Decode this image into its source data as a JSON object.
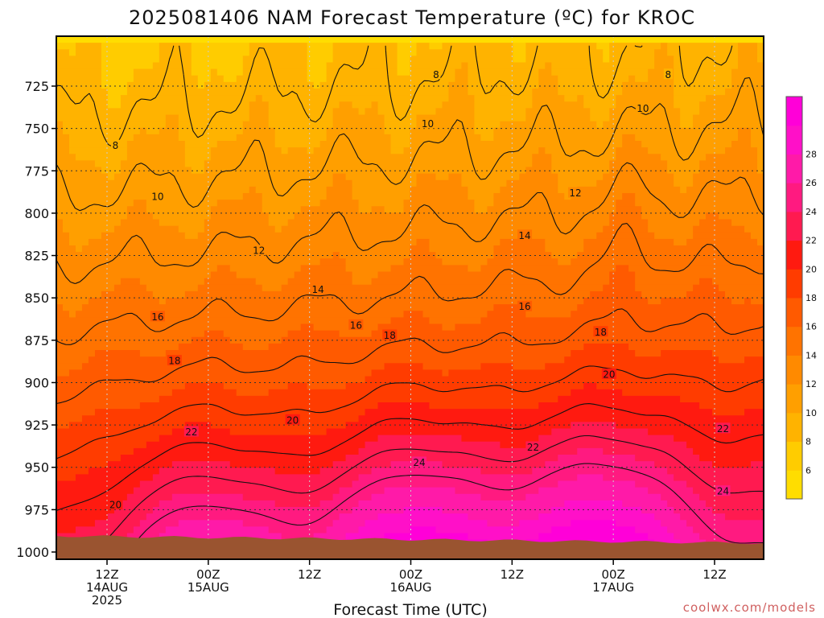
{
  "chart_data": {
    "type": "heatmap",
    "title": "2025081406 NAM Forecast Temperature (ºC) for KROC",
    "xlabel": "Forecast Time (UTC)",
    "ylabel": "",
    "credit": "coolwx.com/models",
    "y_scale": "pressure",
    "ylim": [
      1000,
      700
    ],
    "y_ticks": [
      725,
      750,
      775,
      800,
      825,
      850,
      875,
      900,
      925,
      950,
      975,
      1000
    ],
    "x_ticks": [
      {
        "hour": 6,
        "line1": "12Z",
        "line2": "14AUG",
        "line3": "2025"
      },
      {
        "hour": 18,
        "line1": "00Z",
        "line2": "15AUG",
        "line3": ""
      },
      {
        "hour": 30,
        "line1": "12Z",
        "line2": "",
        "line3": ""
      },
      {
        "hour": 42,
        "line1": "00Z",
        "line2": "16AUG",
        "line3": ""
      },
      {
        "hour": 54,
        "line1": "12Z",
        "line2": "",
        "line3": ""
      },
      {
        "hour": 66,
        "line1": "00Z",
        "line2": "17AUG",
        "line3": ""
      },
      {
        "hour": 78,
        "line1": "12Z",
        "line2": "",
        "line3": ""
      }
    ],
    "xlim": [
      0,
      84
    ],
    "colorbar": {
      "ticks": [
        6,
        8,
        10,
        12,
        14,
        16,
        18,
        20,
        22,
        24,
        26,
        28
      ],
      "levels": [
        5,
        7,
        9,
        11,
        13,
        15,
        17,
        19,
        21,
        23,
        25,
        27,
        29
      ],
      "colors": [
        "#ffdd00",
        "#ffcc00",
        "#ffb300",
        "#ff9f00",
        "#ff8a00",
        "#ff7300",
        "#ff5a00",
        "#ff3c00",
        "#ff1a10",
        "#ff1a50",
        "#ff1a80",
        "#ff1aa8",
        "#ff10c8",
        "#ff00d8"
      ]
    },
    "terrain_color": "#9a5430",
    "contour_levels": [
      8,
      10,
      12,
      14,
      16,
      18,
      20,
      22,
      24
    ],
    "contour_labels": [
      {
        "text": "8",
        "hour": 45.0,
        "p": 718
      },
      {
        "text": "8",
        "hour": 72.5,
        "p": 718
      },
      {
        "text": "8",
        "hour": 7.0,
        "p": 760
      },
      {
        "text": "10",
        "hour": 44.0,
        "p": 747
      },
      {
        "text": "10",
        "hour": 69.5,
        "p": 738
      },
      {
        "text": "10",
        "hour": 12.0,
        "p": 790
      },
      {
        "text": "12",
        "hour": 61.5,
        "p": 788
      },
      {
        "text": "12",
        "hour": 24.0,
        "p": 822
      },
      {
        "text": "14",
        "hour": 55.5,
        "p": 813
      },
      {
        "text": "14",
        "hour": 31.0,
        "p": 845
      },
      {
        "text": "16",
        "hour": 55.5,
        "p": 855
      },
      {
        "text": "16",
        "hour": 12.0,
        "p": 861
      },
      {
        "text": "16",
        "hour": 35.5,
        "p": 866
      },
      {
        "text": "18",
        "hour": 39.5,
        "p": 872
      },
      {
        "text": "18",
        "hour": 64.5,
        "p": 870
      },
      {
        "text": "18",
        "hour": 14.0,
        "p": 887
      },
      {
        "text": "20",
        "hour": 65.5,
        "p": 895
      },
      {
        "text": "20",
        "hour": 28.0,
        "p": 922
      },
      {
        "text": "20",
        "hour": 7.0,
        "p": 972
      },
      {
        "text": "22",
        "hour": 16.0,
        "p": 929
      },
      {
        "text": "22",
        "hour": 79.0,
        "p": 927
      },
      {
        "text": "22",
        "hour": 56.5,
        "p": 938
      },
      {
        "text": "24",
        "hour": 43.0,
        "p": 947
      },
      {
        "text": "24",
        "hour": 79.0,
        "p": 964
      }
    ]
  }
}
